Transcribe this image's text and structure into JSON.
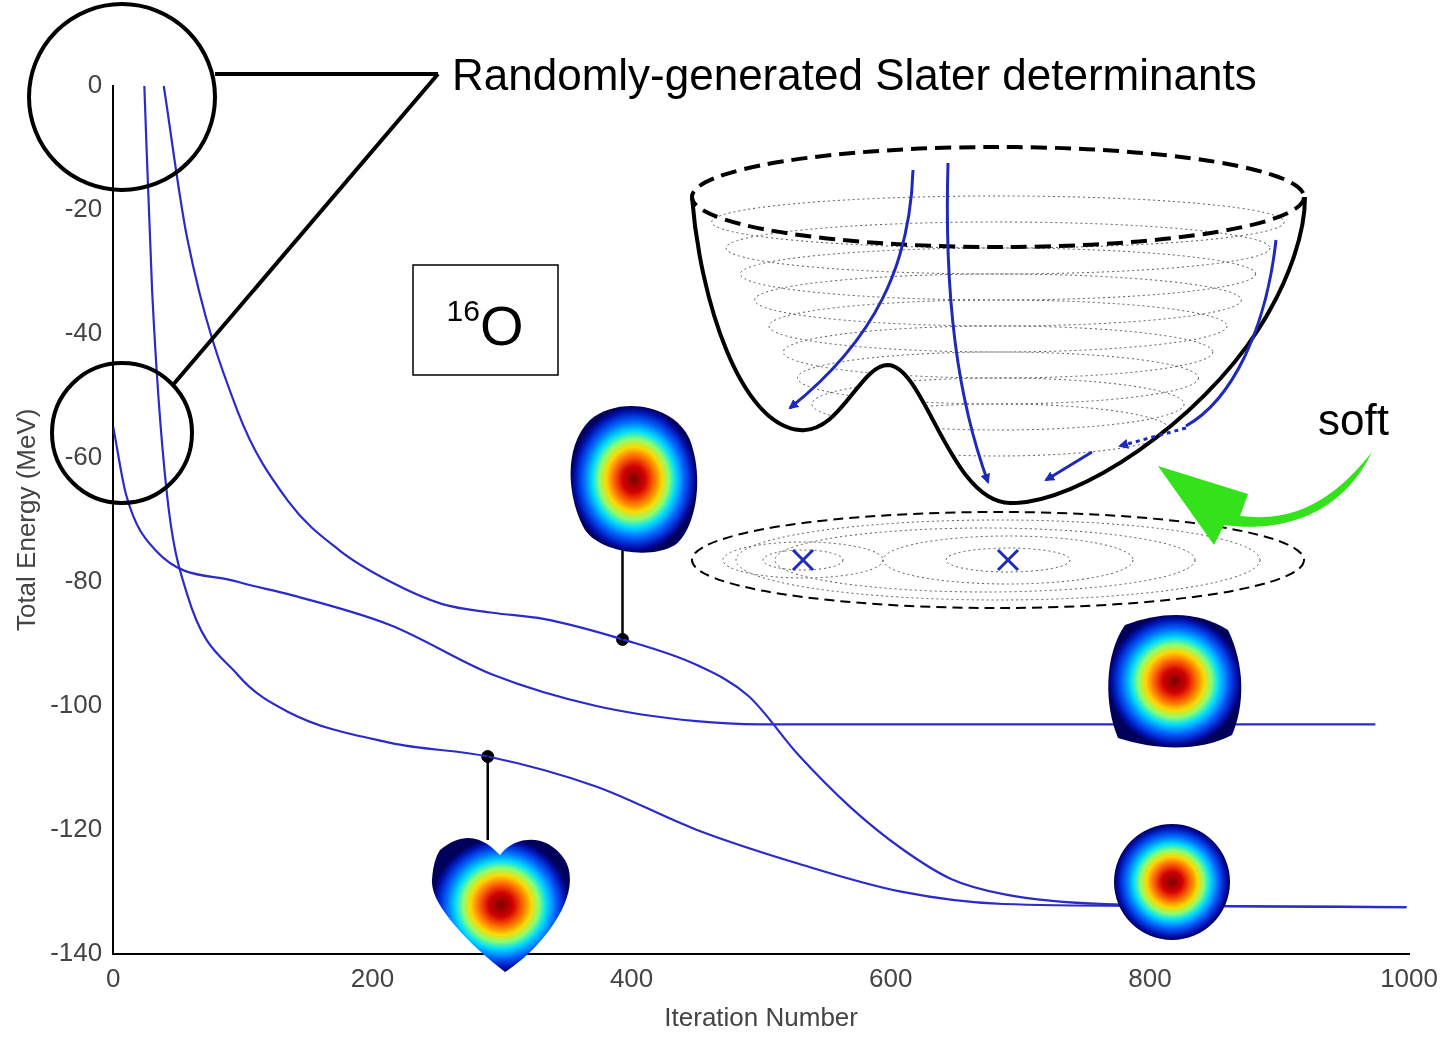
{
  "chart_data": {
    "type": "line",
    "x_label": "Iteration Number",
    "y_label": "Total Energy (MeV)",
    "xlim": [
      0,
      1000
    ],
    "xticks": [
      0,
      200,
      400,
      600,
      800,
      1000
    ],
    "ylim": [
      -140,
      0
    ],
    "yticks": [
      -140,
      -120,
      -100,
      -80,
      -60,
      -40,
      -20,
      0
    ],
    "grid": false,
    "series": [
      {
        "color": "#2b2bc8",
        "x": [
          0,
          10,
          33,
          96,
          135,
          214,
          293,
          372,
          450,
          500,
          974
        ],
        "values": [
          -55,
          -66,
          -75,
          -80,
          -82,
          -87,
          -95,
          -100,
          -102.5,
          -103,
          -103
        ]
      },
      {
        "color": "#2b2bc8",
        "x": [
          24,
          30,
          41,
          57,
          96,
          135,
          214,
          289,
          372,
          450,
          529,
          608,
          687,
          805,
          998
        ],
        "values": [
          0,
          -33,
          -65,
          -82,
          -95,
          -101,
          -106,
          -108.2,
          -113,
          -120,
          -125.5,
          -130,
          -132,
          -132.3,
          -132.5
        ]
      },
      {
        "color": "#2b2bc8",
        "x": [
          39,
          57,
          96,
          135,
          175,
          214,
          254,
          293,
          332,
          393,
          450,
          490,
          529,
          569,
          608,
          647,
          687,
          765,
          998
        ],
        "values": [
          0,
          -24.5,
          -52.5,
          -67,
          -75,
          -80,
          -83.6,
          -85,
          -86,
          -89.3,
          -93.4,
          -98.4,
          -108,
          -116.4,
          -123,
          -128,
          -130.4,
          -132,
          -132.5
        ]
      }
    ],
    "markers": [
      {
        "x": 289,
        "y": -108.2
      },
      {
        "x": 393,
        "y": -89.3
      }
    ],
    "annotations": {
      "callout": "Randomly-generated Slater determinants",
      "nucleus": {
        "mass_number": "16",
        "symbol": "O"
      },
      "landscape": "soft"
    }
  }
}
